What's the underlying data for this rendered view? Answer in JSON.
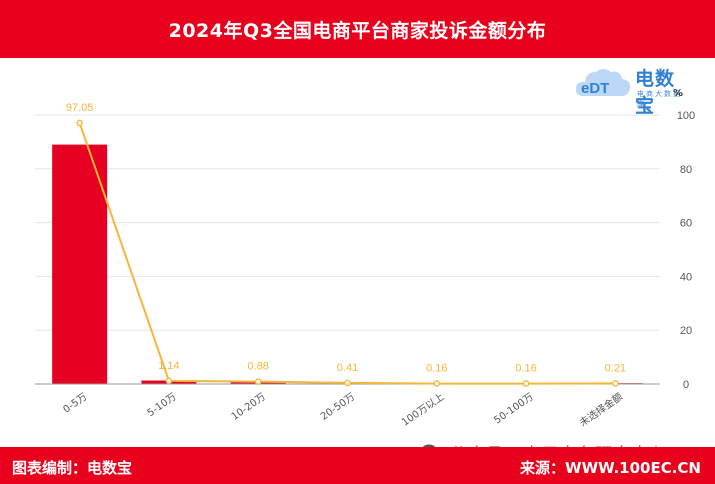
{
  "header": {
    "title": "2024年Q3全国电商平台商家投诉金额分布"
  },
  "logo": {
    "name": "电数宝",
    "tagline": "电商大数据库",
    "mark": "eDT"
  },
  "footer": {
    "left": "图表编制：电数宝",
    "right": "来源：WWW.100EC.CN",
    "watermark": "公众号 · 电子商务研究中心"
  },
  "colors": {
    "brand_red": "#e8001c",
    "bar": "#e60022",
    "line": "#f7b53a",
    "logo_blue": "#2f7fd6"
  },
  "chart_data": {
    "type": "bar",
    "title": "2024年Q3全国电商平台商家投诉金额分布",
    "categories": [
      "0-5万",
      "5-10万",
      "10-20万",
      "20-50万",
      "100万以上",
      "50-100万",
      "未选择金额"
    ],
    "series": [
      {
        "values": [
          89.0,
          1.3,
          0.9,
          0.5,
          0.2,
          0.2,
          0.3
        ]
      },
      {
        "type": "line",
        "values": [
          97.05,
          1.14,
          0.88,
          0.41,
          0.16,
          0.16,
          0.21
        ]
      }
    ],
    "data_labels": [
      "97.05",
      "1.14",
      "0.88",
      "0.41",
      "0.16",
      "0.16",
      "0.21"
    ],
    "y_axis": {
      "position": "right",
      "unit": "%",
      "ticks": [
        "0",
        "20",
        "40",
        "60",
        "80",
        "100"
      ],
      "ylim": [
        0,
        100
      ]
    },
    "grid": true,
    "legend": "none"
  }
}
